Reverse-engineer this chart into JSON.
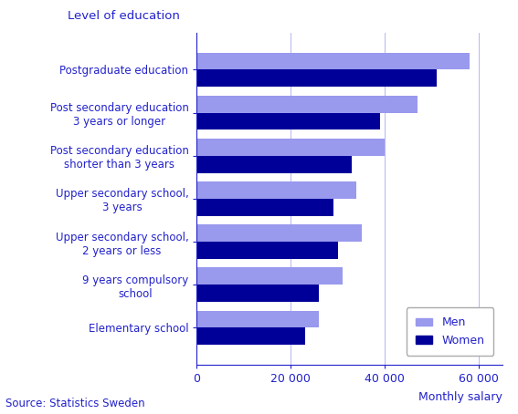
{
  "categories": [
    "Elementary school",
    "9 years compulsory\nschool",
    "Upper secondary school,\n2 years or less",
    "Upper secondary school,\n3 years",
    "Post secondary education\nshorter than 3 years",
    "Post secondary education\n3 years or longer",
    "Postgraduate education"
  ],
  "men_values": [
    26000,
    31000,
    35000,
    34000,
    40000,
    47000,
    58000
  ],
  "women_values": [
    23000,
    26000,
    30000,
    29000,
    33000,
    39000,
    51000
  ],
  "men_color": "#9999ee",
  "women_color": "#000099",
  "title": "Level of education",
  "xlabel": "Monthly salary",
  "source": "Source: Statistics Sweden",
  "xlim": [
    0,
    65000
  ],
  "xticks": [
    0,
    20000,
    40000,
    60000
  ],
  "xtick_labels": [
    "0",
    "20 000",
    "40 000",
    "60 000"
  ],
  "text_color": "#2222cc",
  "background_color": "#ffffff"
}
